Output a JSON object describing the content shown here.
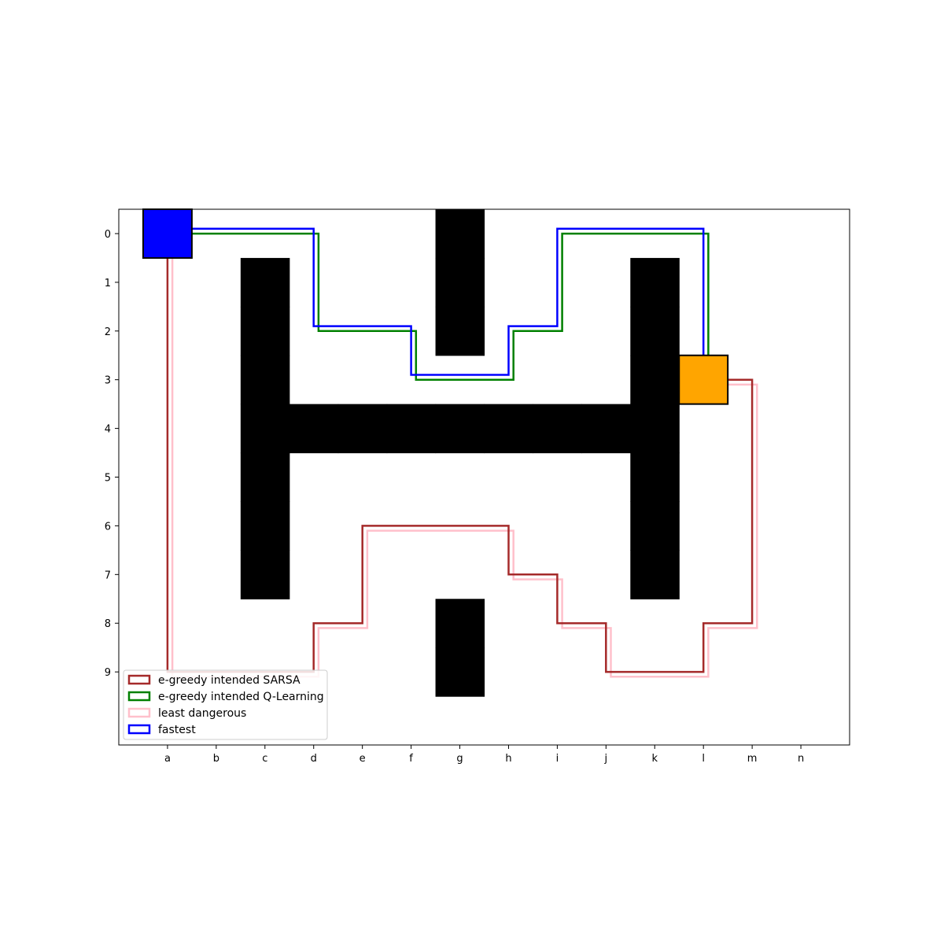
{
  "chart_data": {
    "type": "gridworld",
    "x_tick_labels": [
      "a",
      "b",
      "c",
      "d",
      "e",
      "f",
      "g",
      "h",
      "i",
      "j",
      "k",
      "l",
      "m",
      "n"
    ],
    "y_tick_labels": [
      "0",
      "1",
      "2",
      "3",
      "4",
      "5",
      "6",
      "7",
      "8",
      "9"
    ],
    "xlim": [
      -1,
      14
    ],
    "ylim": [
      -0.5,
      10.5
    ],
    "walls": [
      {
        "col": 6,
        "row": 0
      },
      {
        "col": 6,
        "row": 1
      },
      {
        "col": 6,
        "row": 2
      },
      {
        "col": 2,
        "row": 1
      },
      {
        "col": 2,
        "row": 2
      },
      {
        "col": 2,
        "row": 3
      },
      {
        "col": 2,
        "row": 4
      },
      {
        "col": 2,
        "row": 5
      },
      {
        "col": 2,
        "row": 6
      },
      {
        "col": 2,
        "row": 7
      },
      {
        "col": 3,
        "row": 4
      },
      {
        "col": 4,
        "row": 4
      },
      {
        "col": 5,
        "row": 4
      },
      {
        "col": 6,
        "row": 4
      },
      {
        "col": 7,
        "row": 4
      },
      {
        "col": 8,
        "row": 4
      },
      {
        "col": 9,
        "row": 4
      },
      {
        "col": 10,
        "row": 1
      },
      {
        "col": 10,
        "row": 2
      },
      {
        "col": 10,
        "row": 3
      },
      {
        "col": 10,
        "row": 4
      },
      {
        "col": 10,
        "row": 5
      },
      {
        "col": 10,
        "row": 6
      },
      {
        "col": 10,
        "row": 7
      },
      {
        "col": 6,
        "row": 8
      },
      {
        "col": 6,
        "row": 9
      }
    ],
    "start": {
      "col": 0,
      "row": 0,
      "color": "#0000ff"
    },
    "goal": {
      "col": 11,
      "row": 3,
      "color": "#ffa500"
    },
    "series": [
      {
        "name": "least dangerous",
        "color": "#ffc0cb",
        "offset": [
          0.1,
          0.1
        ],
        "path": [
          [
            0,
            0
          ],
          [
            0,
            9
          ],
          [
            3,
            9
          ],
          [
            3,
            8
          ],
          [
            4,
            8
          ],
          [
            4,
            6
          ],
          [
            7,
            6
          ],
          [
            7,
            7
          ],
          [
            8,
            7
          ],
          [
            8,
            8
          ],
          [
            9,
            8
          ],
          [
            9,
            9
          ],
          [
            11,
            9
          ],
          [
            11,
            8
          ],
          [
            12,
            8
          ],
          [
            12,
            3
          ],
          [
            11,
            3
          ]
        ]
      },
      {
        "name": "e-greedy intended SARSA",
        "color": "#a52a2a",
        "offset": [
          0.0,
          0.0
        ],
        "path": [
          [
            0,
            0
          ],
          [
            0,
            9
          ],
          [
            3,
            9
          ],
          [
            3,
            8
          ],
          [
            4,
            8
          ],
          [
            4,
            6
          ],
          [
            7,
            6
          ],
          [
            7,
            7
          ],
          [
            8,
            7
          ],
          [
            8,
            8
          ],
          [
            9,
            8
          ],
          [
            9,
            9
          ],
          [
            11,
            9
          ],
          [
            11,
            8
          ],
          [
            12,
            8
          ],
          [
            12,
            3
          ],
          [
            11,
            3
          ]
        ]
      },
      {
        "name": "e-greedy intended Q-Learning",
        "color": "#008000",
        "offset": [
          0.1,
          0.0
        ],
        "path": [
          [
            0,
            0
          ],
          [
            3,
            0
          ],
          [
            3,
            2
          ],
          [
            5,
            2
          ],
          [
            5,
            3
          ],
          [
            7,
            3
          ],
          [
            7,
            2
          ],
          [
            8,
            2
          ],
          [
            8,
            0
          ],
          [
            11,
            0
          ],
          [
            11,
            3
          ]
        ]
      },
      {
        "name": "fastest",
        "color": "#0000ff",
        "offset": [
          0.0,
          -0.1
        ],
        "path": [
          [
            0,
            0
          ],
          [
            3,
            0
          ],
          [
            3,
            2
          ],
          [
            5,
            2
          ],
          [
            5,
            3
          ],
          [
            7,
            3
          ],
          [
            7,
            2
          ],
          [
            8,
            2
          ],
          [
            8,
            0
          ],
          [
            11,
            0
          ],
          [
            11,
            3
          ]
        ]
      }
    ],
    "legend": {
      "position": "lower-left",
      "order": [
        "e-greedy intended SARSA",
        "e-greedy intended Q-Learning",
        "least dangerous",
        "fastest"
      ]
    }
  }
}
